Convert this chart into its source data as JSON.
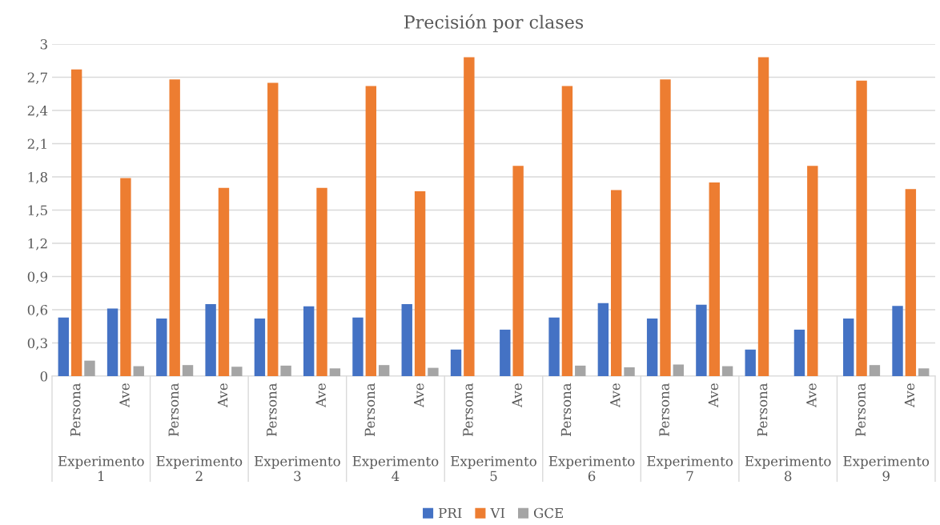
{
  "chart_data": {
    "type": "bar",
    "title": "Precisión por clases",
    "categories": [
      "Persona",
      "Ave",
      "Persona",
      "Ave",
      "Persona",
      "Ave",
      "Persona",
      "Ave",
      "Persona",
      "Ave",
      "Persona",
      "Ave",
      "Persona",
      "Ave",
      "Persona",
      "Ave",
      "Persona",
      "Ave"
    ],
    "annotations": [
      "Experimento 1",
      "Experimento 2",
      "Experimento 3",
      "Experimento 4",
      "Experimento 5",
      "Experimento 6",
      "Experimento 7",
      "Experimento 8",
      "Experimento 9"
    ],
    "series": [
      {
        "name": "PRI",
        "color": "#4472c4",
        "values": [
          0.53,
          0.61,
          0.52,
          0.65,
          0.52,
          0.63,
          0.53,
          0.65,
          0.24,
          0.42,
          0.53,
          0.66,
          0.52,
          0.645,
          0.24,
          0.42,
          0.52,
          0.635
        ]
      },
      {
        "name": "VI",
        "color": "#ed7d31",
        "values": [
          2.77,
          1.79,
          2.68,
          1.7,
          2.65,
          1.7,
          2.62,
          1.67,
          2.88,
          1.9,
          2.62,
          1.68,
          2.68,
          1.75,
          2.88,
          1.9,
          2.67,
          1.69
        ]
      },
      {
        "name": "GCE",
        "color": "#a5a5a5",
        "values": [
          0.14,
          0.09,
          0.1,
          0.085,
          0.095,
          0.07,
          0.1,
          0.075,
          0,
          0,
          0.095,
          0.08,
          0.105,
          0.09,
          0,
          0,
          0.1,
          0.07
        ]
      }
    ],
    "ylim": [
      0,
      3
    ],
    "yticks": [
      0,
      {
        "value": 0.3,
        "label": "0,3"
      },
      {
        "value": 0.6,
        "label": "0,6"
      },
      {
        "value": 0.9,
        "label": "0,9"
      },
      {
        "value": 1.2,
        "label": "1,2"
      },
      {
        "value": 1.5,
        "label": "1,5"
      },
      {
        "value": 1.8,
        "label": "1,8"
      },
      {
        "value": 2.1,
        "label": "2,1"
      },
      {
        "value": 2.4,
        "label": "2,4"
      },
      {
        "value": 2.7,
        "label": "2,7"
      },
      3
    ],
    "grid": "y",
    "legend": "bottom"
  }
}
